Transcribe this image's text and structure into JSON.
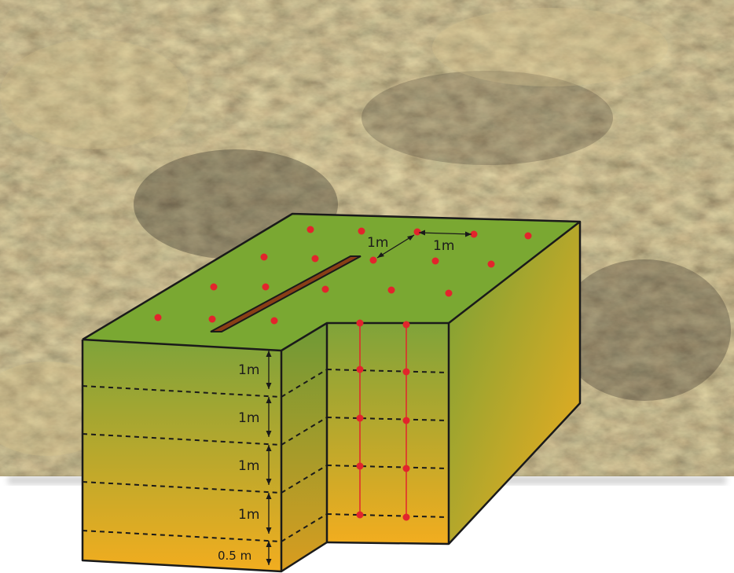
{
  "diagram": {
    "depth_labels": [
      "1m",
      "1m",
      "1m",
      "1m",
      "0.5 m"
    ],
    "surface_labels": [
      "1m",
      "1m"
    ],
    "colors": {
      "surface_top": "#7aa832",
      "block_gradient_top": "#7fa33a",
      "block_gradient_bottom": "#f2ad1f",
      "trench": "#8a3f16",
      "sample_point": "#e2242c",
      "outline": "#1a1a1a"
    },
    "background": "photo-dry-grass-and-charred-soil"
  }
}
